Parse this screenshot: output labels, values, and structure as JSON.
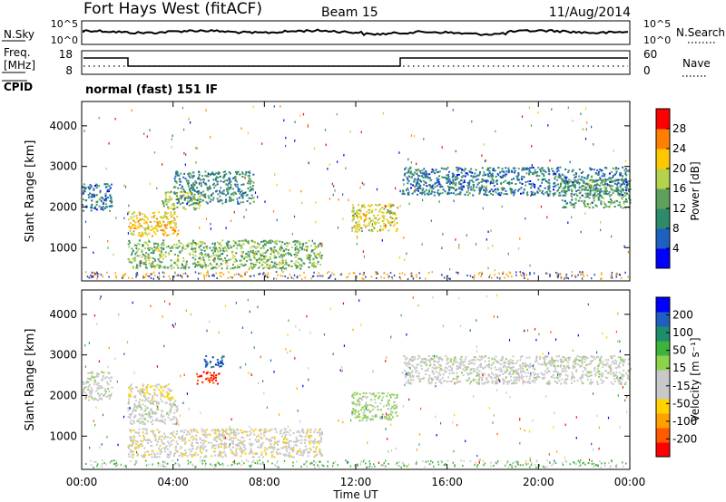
{
  "header": {
    "station": "Fort Hays West (fitACF)",
    "beam": "Beam 15",
    "date": "11/Aug/2014"
  },
  "summary_panels": {
    "nsky_label": "N.Sky",
    "nsky_ticks": [
      "10^5",
      "10^0"
    ],
    "nsearch_label": "N.Search",
    "nsearch_ticks": [
      "10^5",
      "10^0"
    ],
    "freq_label": "Freq.",
    "freq_unit": "[MHz]",
    "freq_ticks": [
      "18",
      "8"
    ],
    "nave_label": "Nave",
    "nave_ticks": [
      "60",
      "0"
    ],
    "cpid_label": "CPID",
    "cpid_text": "normal (fast) 151 IF"
  },
  "chart_data": [
    {
      "type": "heatmap",
      "title": "",
      "xlabel": "Time UT",
      "ylabel": "Slant Range [km]",
      "x_ticks": [
        "00:00",
        "04:00",
        "08:00",
        "12:00",
        "16:00",
        "20:00",
        "00:00"
      ],
      "y_ticks": [
        "1000",
        "2000",
        "3000",
        "4000"
      ],
      "xlim_hours": [
        0,
        24
      ],
      "ylim_km": [
        180,
        4600
      ],
      "colorbar": {
        "label": "Power [dB]",
        "ticks": [
          "28",
          "24",
          "20",
          "16",
          "12",
          "8",
          "4"
        ],
        "range": [
          0,
          30
        ],
        "colors": [
          "#0000ff",
          "#1f5fbf",
          "#2e8b6a",
          "#5fa05f",
          "#b4d24b",
          "#ffc800",
          "#ff8000",
          "#ff0000"
        ]
      },
      "regions": [
        {
          "name": "early-band",
          "t": [
            0.0,
            1.3
          ],
          "r": [
            1900,
            2600
          ],
          "power": 8
        },
        {
          "name": "morning-arc",
          "t": [
            2.0,
            4.2
          ],
          "r": [
            1300,
            1900
          ],
          "power": 20
        },
        {
          "name": "morning-arc-upper",
          "t": [
            3.5,
            5.2
          ],
          "r": [
            1950,
            2400
          ],
          "power": 16
        },
        {
          "name": "low-band",
          "t": [
            2.0,
            10.5
          ],
          "r": [
            500,
            1200
          ],
          "power": 14
        },
        {
          "name": "upper-scatter",
          "t": [
            4.0,
            7.5
          ],
          "r": [
            2100,
            2900
          ],
          "power": 10
        },
        {
          "name": "noon-patch",
          "t": [
            11.8,
            13.8
          ],
          "r": [
            1400,
            2100
          ],
          "power": 18
        },
        {
          "name": "afternoon-band",
          "t": [
            14.0,
            24.0
          ],
          "r": [
            2300,
            3000
          ],
          "power": 8
        },
        {
          "name": "evening-band",
          "t": [
            21.0,
            24.0
          ],
          "r": [
            2000,
            2700
          ],
          "power": 12
        }
      ]
    },
    {
      "type": "heatmap",
      "title": "",
      "xlabel": "Time UT",
      "ylabel": "Slant Range [km]",
      "x_ticks": [
        "00:00",
        "04:00",
        "08:00",
        "12:00",
        "16:00",
        "20:00",
        "00:00"
      ],
      "y_ticks": [
        "1000",
        "2000",
        "3000",
        "4000"
      ],
      "xlim_hours": [
        0,
        24
      ],
      "ylim_km": [
        180,
        4600
      ],
      "colorbar": {
        "label": "Velocity [m s⁻¹]",
        "ticks": [
          "200",
          "100",
          "50",
          "15",
          "-15",
          "-50",
          "-100",
          "-200"
        ],
        "range": [
          -250,
          250
        ],
        "colors": [
          "#ff0000",
          "#ff5a00",
          "#ffa000",
          "#ffd200",
          "#c8c8c8",
          "#c8c8c8",
          "#8cd24b",
          "#3cb43c",
          "#1f8c6e",
          "#1f5fbf",
          "#0000ff"
        ]
      },
      "regions": [
        {
          "name": "early-band",
          "t": [
            0.0,
            1.3
          ],
          "r": [
            1900,
            2600
          ],
          "velocity": 0
        },
        {
          "name": "morning-arc",
          "t": [
            2.0,
            4.2
          ],
          "r": [
            1300,
            1900
          ],
          "velocity": 0
        },
        {
          "name": "morning-orange",
          "t": [
            2.0,
            4.0
          ],
          "r": [
            1900,
            2300
          ],
          "velocity": -60
        },
        {
          "name": "red-blob",
          "t": [
            5.0,
            6.0
          ],
          "r": [
            2300,
            2600
          ],
          "velocity": -200
        },
        {
          "name": "blue-blob",
          "t": [
            5.3,
            6.2
          ],
          "r": [
            2700,
            3000
          ],
          "velocity": 180
        },
        {
          "name": "low-band",
          "t": [
            2.0,
            10.5
          ],
          "r": [
            500,
            1200
          ],
          "velocity": -50
        },
        {
          "name": "noon-patch",
          "t": [
            11.8,
            13.8
          ],
          "r": [
            1400,
            2100
          ],
          "velocity": 30
        },
        {
          "name": "afternoon-band",
          "t": [
            14.0,
            24.0
          ],
          "r": [
            2300,
            3000
          ],
          "velocity": 0
        }
      ]
    }
  ]
}
